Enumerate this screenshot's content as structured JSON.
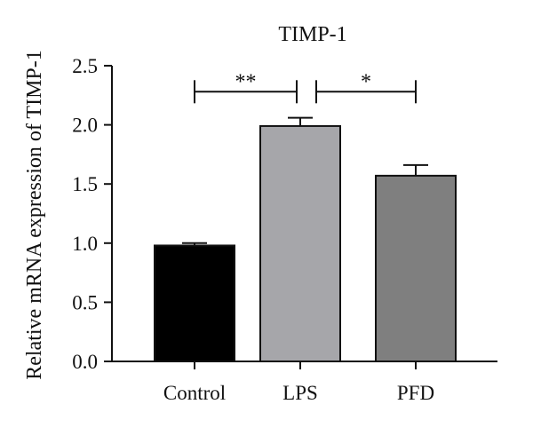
{
  "chart_data": {
    "type": "bar",
    "title": "TIMP-1",
    "xlabel": "",
    "ylabel": "Relative mRNA expression of TIMP-1",
    "categories": [
      "Control",
      "LPS",
      "PFD"
    ],
    "values": [
      0.98,
      1.99,
      1.57
    ],
    "errors": [
      0.02,
      0.07,
      0.09
    ],
    "bar_colors": [
      "#000000",
      "#a6a6aa",
      "#7f7f7f"
    ],
    "ylim": [
      0,
      2.5
    ],
    "yticks": [
      "0.0",
      "0.5",
      "1.0",
      "1.5",
      "2.0",
      "2.5"
    ],
    "ytick_values": [
      0,
      0.5,
      1.0,
      1.5,
      2.0,
      2.5
    ],
    "grid": false,
    "significance": [
      {
        "from": "Control",
        "to": "LPS",
        "label": "**",
        "level": 2.28
      },
      {
        "from": "LPS",
        "to": "PFD",
        "label": "*",
        "level": 2.28
      }
    ]
  }
}
